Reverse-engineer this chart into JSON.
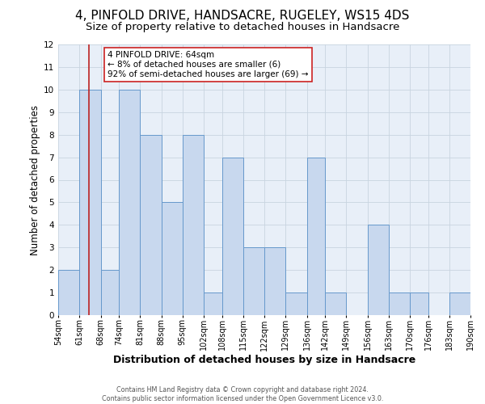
{
  "title": "4, PINFOLD DRIVE, HANDSACRE, RUGELEY, WS15 4DS",
  "subtitle": "Size of property relative to detached houses in Handsacre",
  "xlabel": "Distribution of detached houses by size in Handsacre",
  "ylabel": "Number of detached properties",
  "bin_edges": [
    54,
    61,
    68,
    74,
    81,
    88,
    95,
    102,
    108,
    115,
    122,
    129,
    136,
    142,
    149,
    156,
    163,
    170,
    176,
    183,
    190
  ],
  "bar_heights": [
    2,
    10,
    2,
    10,
    8,
    5,
    8,
    1,
    7,
    3,
    3,
    1,
    7,
    1,
    0,
    4,
    1,
    1,
    0,
    1
  ],
  "bar_color": "#c8d8ee",
  "bar_edgecolor": "#6699cc",
  "red_line_x": 64,
  "red_line_color": "#bb2222",
  "ylim": [
    0,
    12
  ],
  "yticks": [
    0,
    1,
    2,
    3,
    4,
    5,
    6,
    7,
    8,
    9,
    10,
    11,
    12
  ],
  "annotation_line1": "4 PINFOLD DRIVE: 64sqm",
  "annotation_line2": "← 8% of detached houses are smaller (6)",
  "annotation_line3": "92% of semi-detached houses are larger (69) →",
  "annotation_box_edgecolor": "#cc2222",
  "footer_line1": "Contains HM Land Registry data © Crown copyright and database right 2024.",
  "footer_line2": "Contains public sector information licensed under the Open Government Licence v3.0.",
  "grid_color": "#c8d4e0",
  "background_color": "#e8eff8",
  "title_fontsize": 11,
  "subtitle_fontsize": 9.5,
  "xlabel_fontsize": 9,
  "ylabel_fontsize": 8.5,
  "tick_fontsize": 7,
  "annot_fontsize": 7.5,
  "footer_fontsize": 5.8
}
